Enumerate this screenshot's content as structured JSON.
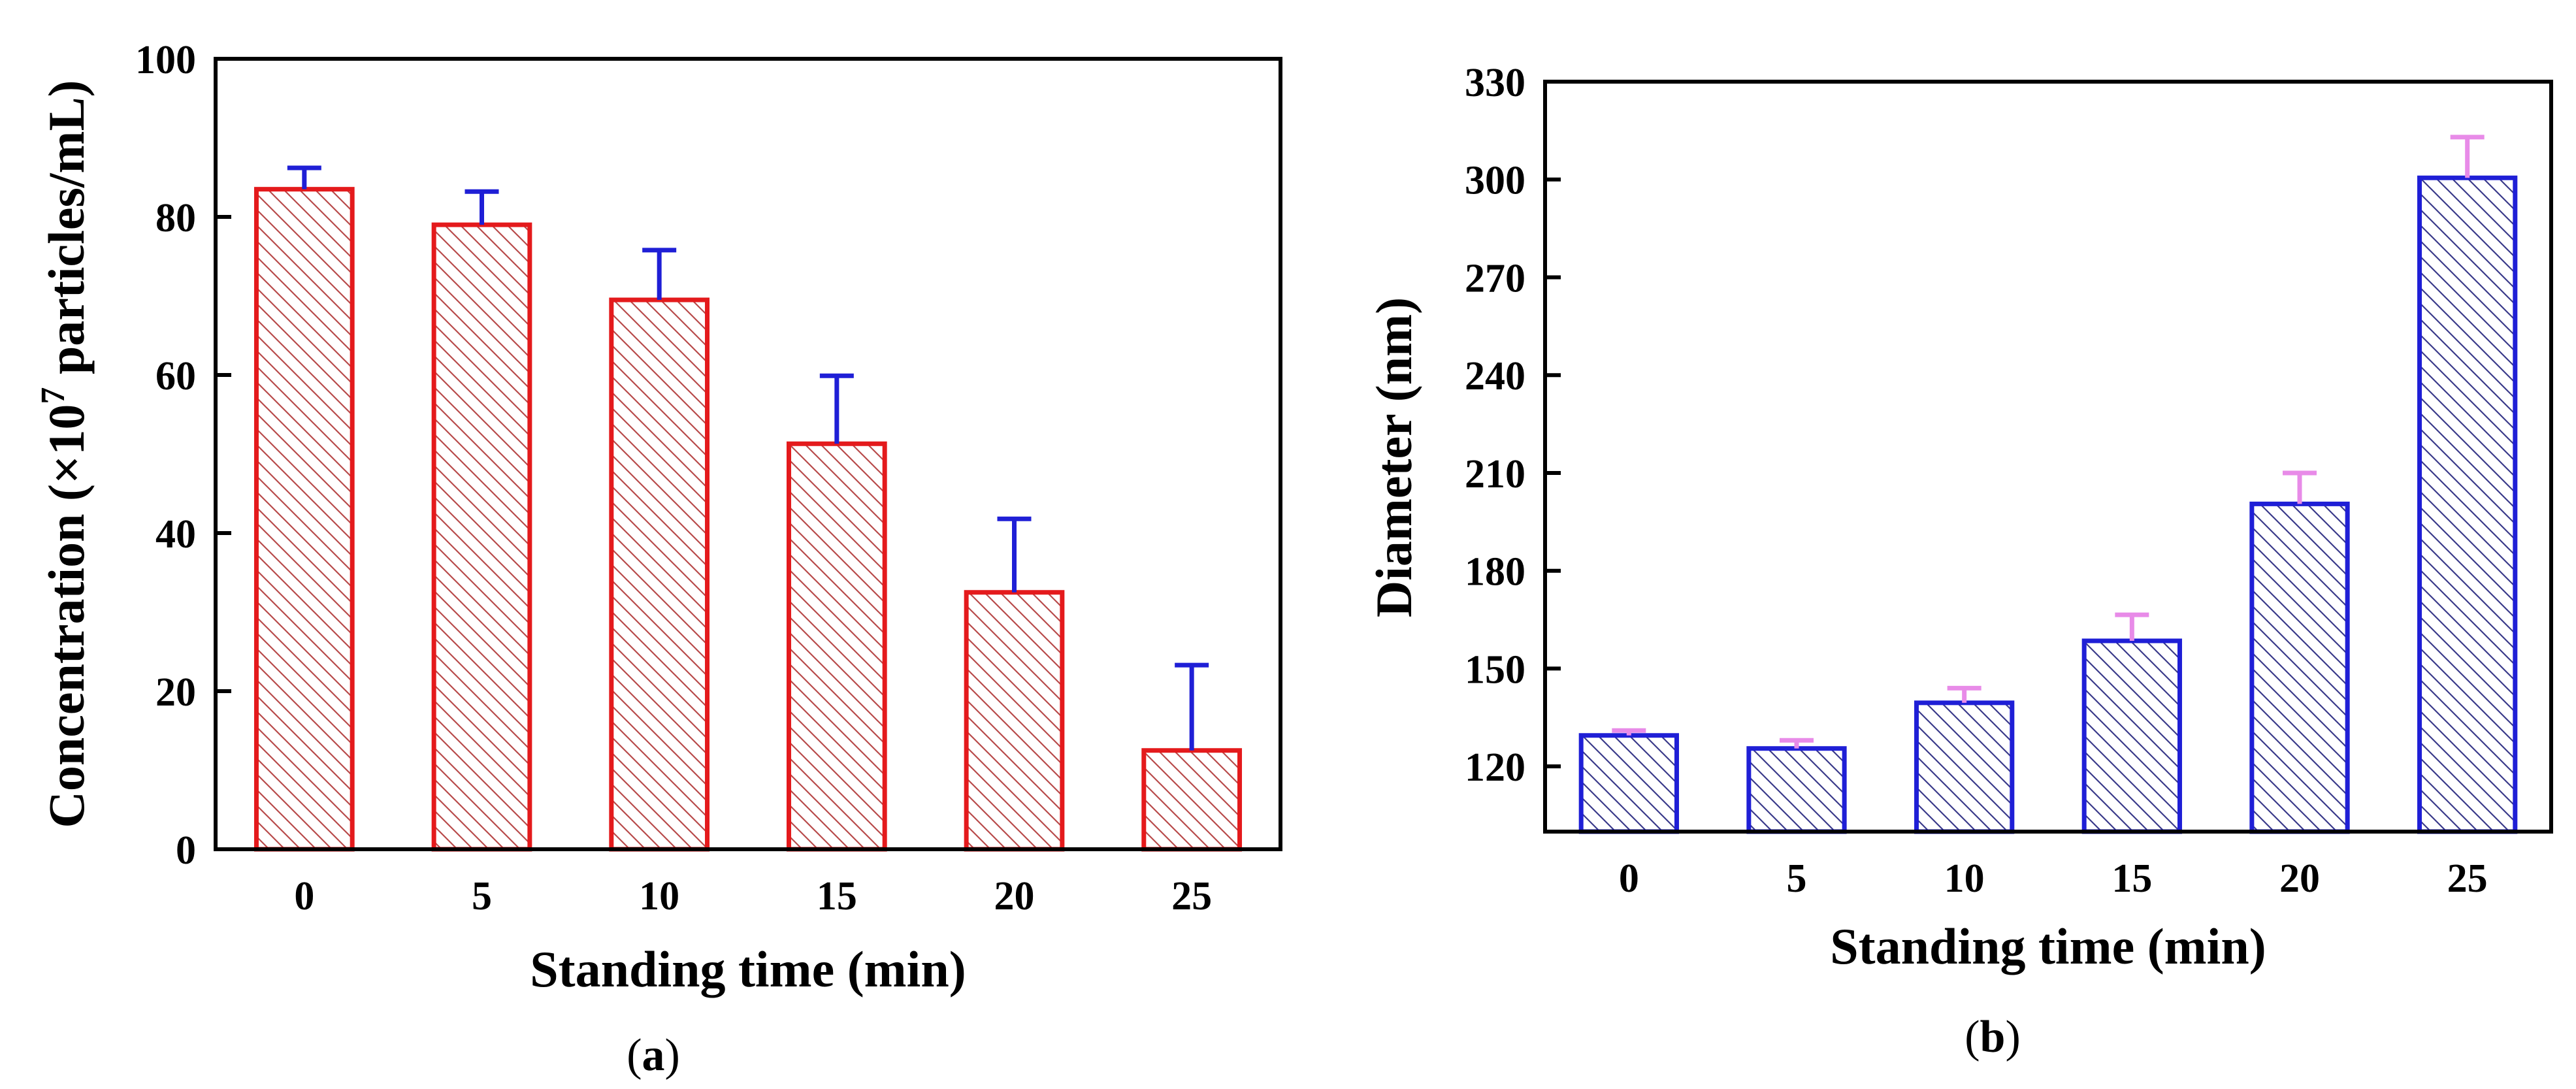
{
  "chart_data": [
    {
      "id": "a",
      "type": "bar",
      "panel_label": "a",
      "categories": [
        "0",
        "5",
        "10",
        "15",
        "20",
        "25"
      ],
      "values": [
        83.5,
        79.0,
        69.5,
        51.3,
        32.5,
        12.5
      ],
      "errors": [
        2.7,
        4.2,
        6.3,
        8.6,
        9.3,
        10.8
      ],
      "ylim": [
        0,
        100
      ],
      "yticks": [
        "0",
        "20",
        "40",
        "60",
        "80",
        "100"
      ],
      "xlabel": "Standing time (min)",
      "ylabel_main": "Concentration (×10",
      "ylabel_sup": "7",
      "ylabel_rest": " particles/mL)",
      "bar_color": "#e41a1c",
      "error_color": "#1f1fd6",
      "hatch_color": "#b84a4a"
    },
    {
      "id": "b",
      "type": "bar",
      "panel_label": "b",
      "categories": [
        "0",
        "5",
        "10",
        "15",
        "20",
        "25"
      ],
      "values": [
        129.5,
        125.5,
        139.5,
        158.5,
        200.5,
        300.5
      ],
      "errors": [
        1.5,
        2.5,
        4.5,
        8.0,
        9.5,
        12.5
      ],
      "ylim": [
        100,
        330
      ],
      "yticks": [
        "120",
        "150",
        "180",
        "210",
        "240",
        "270",
        "300",
        "330"
      ],
      "xlabel": "Standing time (min)",
      "ylabel": "Diameter (nm)",
      "bar_color": "#1f1fd6",
      "error_color": "#e88be8",
      "hatch_color": "#3a3a8a"
    }
  ]
}
